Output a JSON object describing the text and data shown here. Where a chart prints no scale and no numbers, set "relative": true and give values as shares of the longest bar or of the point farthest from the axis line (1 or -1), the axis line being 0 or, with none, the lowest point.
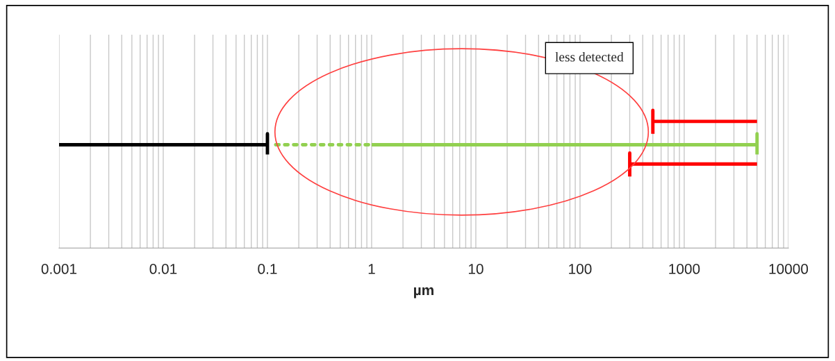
{
  "chart_data": {
    "type": "line",
    "relative": true,
    "xlabel": "µm",
    "log": "x",
    "grid": "x",
    "xlim": [
      0.001,
      10000
    ],
    "xticks": [
      {
        "value": 0.001,
        "label": "0.001"
      },
      {
        "value": 0.01,
        "label": "0.01"
      },
      {
        "value": 0.1,
        "label": "0.1"
      },
      {
        "value": 1,
        "label": "1"
      },
      {
        "value": 10,
        "label": "10"
      },
      {
        "value": 100,
        "label": "100"
      },
      {
        "value": 1000,
        "label": "1000"
      },
      {
        "value": 10000,
        "label": "10000"
      }
    ],
    "annotations": [
      "less detected"
    ],
    "series": [
      {
        "color": "#000000",
        "x": [
          0.001,
          0.1,
          0.1,
          0.1
        ],
        "values": [
          0.75,
          0.75,
          0.83,
          0.68
        ],
        "line_style": "solid"
      },
      {
        "color": "#92d050",
        "x": [
          0.12,
          1
        ],
        "values": [
          0.75,
          0.75
        ],
        "line_style": "dotted"
      },
      {
        "color": "#92d050",
        "x": [
          1,
          5000,
          5000,
          5000
        ],
        "values": [
          0.75,
          0.75,
          0.83,
          0.68
        ],
        "line_style": "solid"
      },
      {
        "color": "#ff0000",
        "x": [
          5000,
          500,
          500,
          500
        ],
        "values": [
          0.92,
          0.92,
          1,
          0.83
        ],
        "line_style": "solid"
      },
      {
        "color": "#ff0000",
        "x": [
          5000,
          300,
          300,
          300
        ],
        "values": [
          0.61,
          0.61,
          0.69,
          0.52
        ],
        "line_style": "solid"
      }
    ]
  }
}
